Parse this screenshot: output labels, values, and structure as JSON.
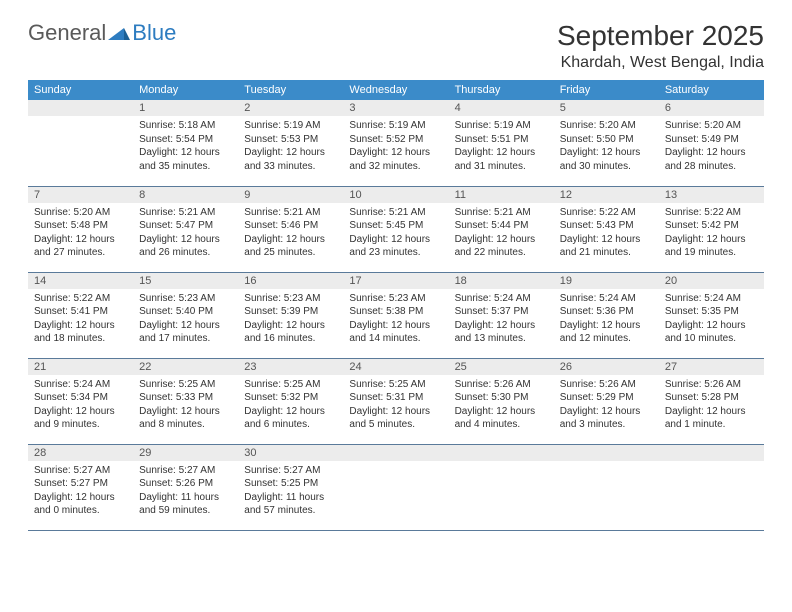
{
  "logo": {
    "part1": "General",
    "part2": "Blue"
  },
  "title": "September 2025",
  "location": "Khardah, West Bengal, India",
  "colors": {
    "header_bg": "#3b8bc9",
    "header_text": "#ffffff",
    "daynum_bg": "#ececec",
    "daynum_text": "#555555",
    "body_text": "#333333",
    "row_divider": "#5a7a9a",
    "logo_gray": "#5a5a5a",
    "logo_blue": "#2d7cc0"
  },
  "weekdays": [
    "Sunday",
    "Monday",
    "Tuesday",
    "Wednesday",
    "Thursday",
    "Friday",
    "Saturday"
  ],
  "weeks": [
    [
      {
        "n": "",
        "sr": "",
        "ss": "",
        "dl": ""
      },
      {
        "n": "1",
        "sr": "Sunrise: 5:18 AM",
        "ss": "Sunset: 5:54 PM",
        "dl": "Daylight: 12 hours and 35 minutes."
      },
      {
        "n": "2",
        "sr": "Sunrise: 5:19 AM",
        "ss": "Sunset: 5:53 PM",
        "dl": "Daylight: 12 hours and 33 minutes."
      },
      {
        "n": "3",
        "sr": "Sunrise: 5:19 AM",
        "ss": "Sunset: 5:52 PM",
        "dl": "Daylight: 12 hours and 32 minutes."
      },
      {
        "n": "4",
        "sr": "Sunrise: 5:19 AM",
        "ss": "Sunset: 5:51 PM",
        "dl": "Daylight: 12 hours and 31 minutes."
      },
      {
        "n": "5",
        "sr": "Sunrise: 5:20 AM",
        "ss": "Sunset: 5:50 PM",
        "dl": "Daylight: 12 hours and 30 minutes."
      },
      {
        "n": "6",
        "sr": "Sunrise: 5:20 AM",
        "ss": "Sunset: 5:49 PM",
        "dl": "Daylight: 12 hours and 28 minutes."
      }
    ],
    [
      {
        "n": "7",
        "sr": "Sunrise: 5:20 AM",
        "ss": "Sunset: 5:48 PM",
        "dl": "Daylight: 12 hours and 27 minutes."
      },
      {
        "n": "8",
        "sr": "Sunrise: 5:21 AM",
        "ss": "Sunset: 5:47 PM",
        "dl": "Daylight: 12 hours and 26 minutes."
      },
      {
        "n": "9",
        "sr": "Sunrise: 5:21 AM",
        "ss": "Sunset: 5:46 PM",
        "dl": "Daylight: 12 hours and 25 minutes."
      },
      {
        "n": "10",
        "sr": "Sunrise: 5:21 AM",
        "ss": "Sunset: 5:45 PM",
        "dl": "Daylight: 12 hours and 23 minutes."
      },
      {
        "n": "11",
        "sr": "Sunrise: 5:21 AM",
        "ss": "Sunset: 5:44 PM",
        "dl": "Daylight: 12 hours and 22 minutes."
      },
      {
        "n": "12",
        "sr": "Sunrise: 5:22 AM",
        "ss": "Sunset: 5:43 PM",
        "dl": "Daylight: 12 hours and 21 minutes."
      },
      {
        "n": "13",
        "sr": "Sunrise: 5:22 AM",
        "ss": "Sunset: 5:42 PM",
        "dl": "Daylight: 12 hours and 19 minutes."
      }
    ],
    [
      {
        "n": "14",
        "sr": "Sunrise: 5:22 AM",
        "ss": "Sunset: 5:41 PM",
        "dl": "Daylight: 12 hours and 18 minutes."
      },
      {
        "n": "15",
        "sr": "Sunrise: 5:23 AM",
        "ss": "Sunset: 5:40 PM",
        "dl": "Daylight: 12 hours and 17 minutes."
      },
      {
        "n": "16",
        "sr": "Sunrise: 5:23 AM",
        "ss": "Sunset: 5:39 PM",
        "dl": "Daylight: 12 hours and 16 minutes."
      },
      {
        "n": "17",
        "sr": "Sunrise: 5:23 AM",
        "ss": "Sunset: 5:38 PM",
        "dl": "Daylight: 12 hours and 14 minutes."
      },
      {
        "n": "18",
        "sr": "Sunrise: 5:24 AM",
        "ss": "Sunset: 5:37 PM",
        "dl": "Daylight: 12 hours and 13 minutes."
      },
      {
        "n": "19",
        "sr": "Sunrise: 5:24 AM",
        "ss": "Sunset: 5:36 PM",
        "dl": "Daylight: 12 hours and 12 minutes."
      },
      {
        "n": "20",
        "sr": "Sunrise: 5:24 AM",
        "ss": "Sunset: 5:35 PM",
        "dl": "Daylight: 12 hours and 10 minutes."
      }
    ],
    [
      {
        "n": "21",
        "sr": "Sunrise: 5:24 AM",
        "ss": "Sunset: 5:34 PM",
        "dl": "Daylight: 12 hours and 9 minutes."
      },
      {
        "n": "22",
        "sr": "Sunrise: 5:25 AM",
        "ss": "Sunset: 5:33 PM",
        "dl": "Daylight: 12 hours and 8 minutes."
      },
      {
        "n": "23",
        "sr": "Sunrise: 5:25 AM",
        "ss": "Sunset: 5:32 PM",
        "dl": "Daylight: 12 hours and 6 minutes."
      },
      {
        "n": "24",
        "sr": "Sunrise: 5:25 AM",
        "ss": "Sunset: 5:31 PM",
        "dl": "Daylight: 12 hours and 5 minutes."
      },
      {
        "n": "25",
        "sr": "Sunrise: 5:26 AM",
        "ss": "Sunset: 5:30 PM",
        "dl": "Daylight: 12 hours and 4 minutes."
      },
      {
        "n": "26",
        "sr": "Sunrise: 5:26 AM",
        "ss": "Sunset: 5:29 PM",
        "dl": "Daylight: 12 hours and 3 minutes."
      },
      {
        "n": "27",
        "sr": "Sunrise: 5:26 AM",
        "ss": "Sunset: 5:28 PM",
        "dl": "Daylight: 12 hours and 1 minute."
      }
    ],
    [
      {
        "n": "28",
        "sr": "Sunrise: 5:27 AM",
        "ss": "Sunset: 5:27 PM",
        "dl": "Daylight: 12 hours and 0 minutes."
      },
      {
        "n": "29",
        "sr": "Sunrise: 5:27 AM",
        "ss": "Sunset: 5:26 PM",
        "dl": "Daylight: 11 hours and 59 minutes."
      },
      {
        "n": "30",
        "sr": "Sunrise: 5:27 AM",
        "ss": "Sunset: 5:25 PM",
        "dl": "Daylight: 11 hours and 57 minutes."
      },
      {
        "n": "",
        "sr": "",
        "ss": "",
        "dl": ""
      },
      {
        "n": "",
        "sr": "",
        "ss": "",
        "dl": ""
      },
      {
        "n": "",
        "sr": "",
        "ss": "",
        "dl": ""
      },
      {
        "n": "",
        "sr": "",
        "ss": "",
        "dl": ""
      }
    ]
  ]
}
